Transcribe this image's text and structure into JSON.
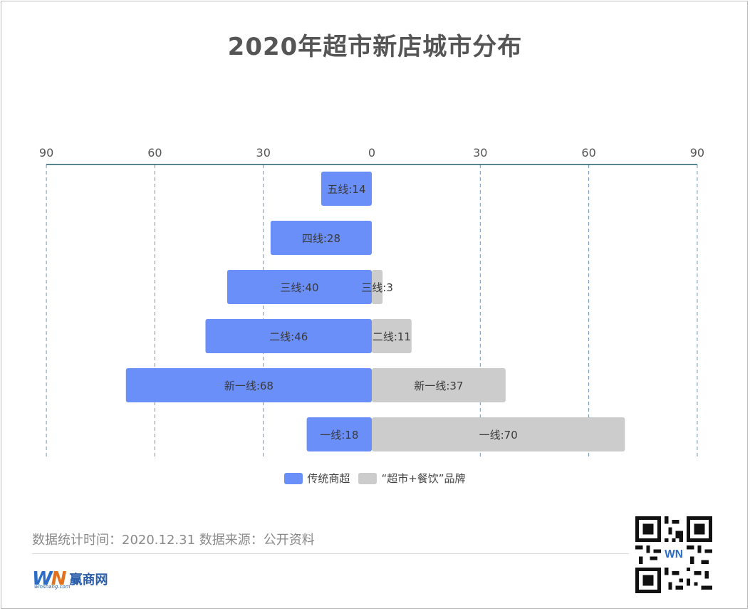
{
  "title": "2020年超市新店城市分布",
  "chart_data": {
    "type": "bar",
    "orientation": "horizontal-diverging",
    "x_ticks_left": [
      "90",
      "60",
      "30",
      "0"
    ],
    "x_ticks_right": [
      "30",
      "60",
      "90"
    ],
    "xlim": [
      -90,
      90
    ],
    "grid": true,
    "legend_position": "bottom",
    "categories": [
      "五线",
      "四线",
      "三线",
      "二线",
      "新一线",
      "一线"
    ],
    "series": [
      {
        "name": "传统商超",
        "side": "left",
        "color": "#6b8ff8",
        "values": [
          14,
          28,
          40,
          46,
          68,
          18
        ],
        "labels": [
          "五线:14",
          "四线:28",
          "三线:40",
          "二线:46",
          "新一线:68",
          "一线:18"
        ]
      },
      {
        "name": "“超市+餐饮”品牌",
        "side": "right",
        "color": "#cccccc",
        "values": [
          0,
          0,
          3,
          11,
          37,
          70
        ],
        "labels": [
          "",
          "",
          "三线:3",
          "二线:11",
          "新一线:37",
          "一线:70"
        ]
      }
    ]
  },
  "legend": {
    "item1": "传统商超",
    "item2": "“超市+餐饮”品牌"
  },
  "footer": {
    "note": "数据统计时间：2020.12.31  数据来源：公开资料",
    "logo_text": "赢商网",
    "logo_url": "winshang.com"
  }
}
